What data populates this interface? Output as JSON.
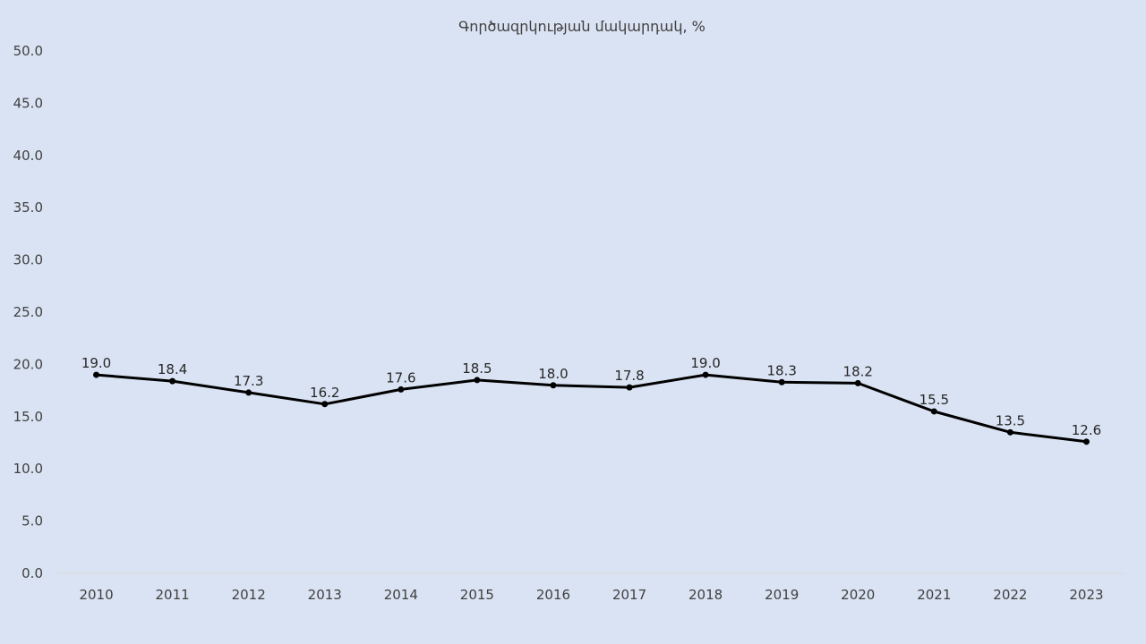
{
  "chart_data": {
    "type": "line",
    "title": "Գործազրկության մակարդակ, %",
    "xlabel": "",
    "ylabel": "",
    "categories": [
      "2010",
      "2011",
      "2012",
      "2013",
      "2014",
      "2015",
      "2016",
      "2017",
      "2018",
      "2019",
      "2020",
      "2021",
      "2022",
      "2023"
    ],
    "series": [
      {
        "values": [
          19.0,
          18.4,
          17.3,
          16.2,
          17.6,
          18.5,
          18.0,
          17.8,
          19.0,
          18.3,
          18.2,
          15.5,
          13.5,
          12.6
        ],
        "data_labels": [
          "19.0",
          "18.4",
          "17.3",
          "16.2",
          "17.6",
          "18.5",
          "18.0",
          "17.8",
          "19.0",
          "18.3",
          "18.2",
          "15.5",
          "13.5",
          "12.6"
        ],
        "color": "#000000",
        "highlight_last_color": "#c00000"
      }
    ],
    "ylim": [
      0,
      50
    ],
    "y_ticks": [
      "0.0",
      "5.0",
      "10.0",
      "15.0",
      "20.0",
      "25.0",
      "30.0",
      "35.0",
      "40.0",
      "45.0",
      "50.0"
    ],
    "grid": false,
    "legend": "none",
    "background_color": "#dae3f3",
    "axis_color": "#d9d9d9",
    "text_color": "#404040"
  }
}
